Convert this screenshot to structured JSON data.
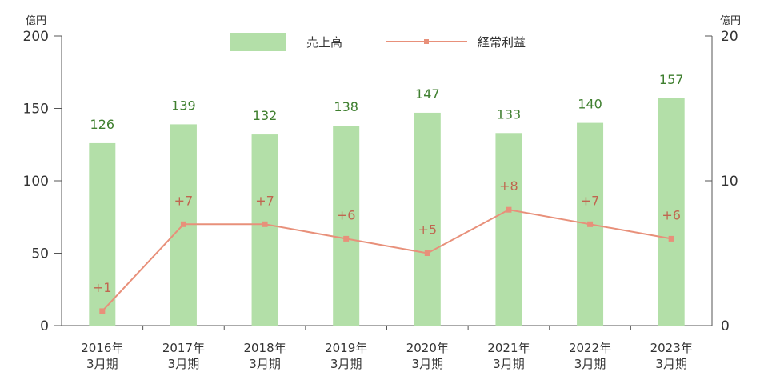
{
  "chart_data": {
    "type": "bar",
    "categories": [
      [
        "2016年",
        "3月期"
      ],
      [
        "2017年",
        "3月期"
      ],
      [
        "2018年",
        "3月期"
      ],
      [
        "2019年",
        "3月期"
      ],
      [
        "2020年",
        "3月期"
      ],
      [
        "2021年",
        "3月期"
      ],
      [
        "2022年",
        "3月期"
      ],
      [
        "2023年",
        "3月期"
      ]
    ],
    "series": [
      {
        "name": "売上高",
        "type": "bar",
        "axis": "left",
        "values": [
          126,
          139,
          132,
          138,
          147,
          133,
          140,
          157
        ],
        "labels": [
          "126",
          "139",
          "132",
          "138",
          "147",
          "133",
          "140",
          "157"
        ],
        "color": "#b3dfa8",
        "label_color": "#3f7f2f"
      },
      {
        "name": "経常利益",
        "type": "line",
        "axis": "right",
        "values": [
          1,
          7,
          7,
          6,
          5,
          8,
          7,
          6
        ],
        "labels": [
          "+1",
          "+7",
          "+7",
          "+6",
          "+5",
          "+8",
          "+7",
          "+6"
        ],
        "color": "#e8907a",
        "label_color": "#c0654f"
      }
    ],
    "y_left": {
      "unit": "億円",
      "min": 0,
      "max": 200,
      "ticks": [
        "0",
        "50",
        "100",
        "150",
        "200"
      ],
      "tick_values": [
        0,
        50,
        100,
        150,
        200
      ]
    },
    "y_right": {
      "unit": "億円",
      "min": 0,
      "max": 20,
      "ticks": [
        "0",
        "10",
        "20"
      ],
      "tick_values": [
        0,
        10,
        20
      ]
    },
    "legend": "top-center",
    "grid": false
  }
}
